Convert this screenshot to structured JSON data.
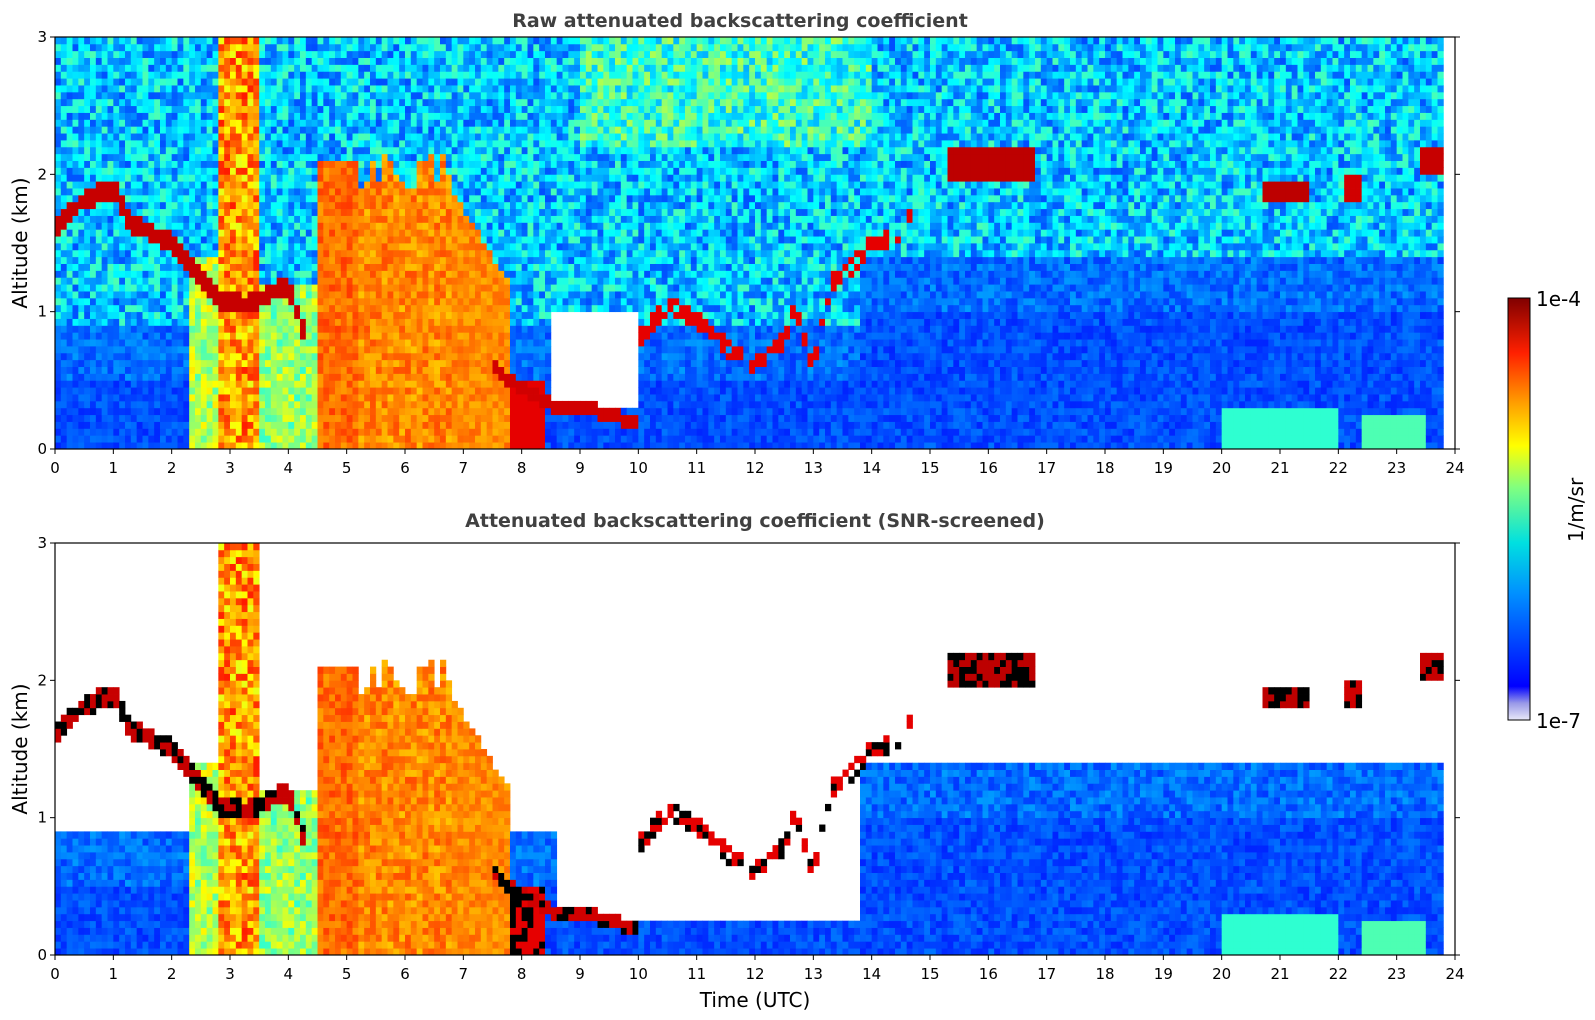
{
  "chart_data": [
    {
      "type": "heatmap",
      "title": "Raw attenuated backscattering coefficient",
      "xlabel": "",
      "ylabel": "Altitude (km)",
      "xlim": [
        0,
        24
      ],
      "ylim": [
        0,
        3
      ],
      "x_ticks": [
        "0",
        "1",
        "2",
        "3",
        "4",
        "5",
        "6",
        "7",
        "8",
        "9",
        "10",
        "11",
        "12",
        "13",
        "14",
        "15",
        "16",
        "17",
        "18",
        "19",
        "20",
        "21",
        "22",
        "23",
        "24"
      ],
      "y_ticks": [
        "0",
        "1",
        "2",
        "3"
      ],
      "screened": false,
      "grid": false
    },
    {
      "type": "heatmap",
      "title": "Attenuated backscattering coefficient (SNR-screened)",
      "xlabel": "Time (UTC)",
      "ylabel": "Altitude (km)",
      "xlim": [
        0,
        24
      ],
      "ylim": [
        0,
        3
      ],
      "x_ticks": [
        "0",
        "1",
        "2",
        "3",
        "4",
        "5",
        "6",
        "7",
        "8",
        "9",
        "10",
        "11",
        "12",
        "13",
        "14",
        "15",
        "16",
        "17",
        "18",
        "19",
        "20",
        "21",
        "22",
        "23",
        "24"
      ],
      "y_ticks": [
        "0",
        "1",
        "2",
        "3"
      ],
      "screened": true,
      "grid": false
    }
  ],
  "colorbar": {
    "label": "1/m/sr",
    "min_label": "1e-7",
    "max_label": "1e-4",
    "scale": "log",
    "colormap": "jet"
  },
  "colors": {
    "title": "#404040",
    "axis": "#000000"
  }
}
